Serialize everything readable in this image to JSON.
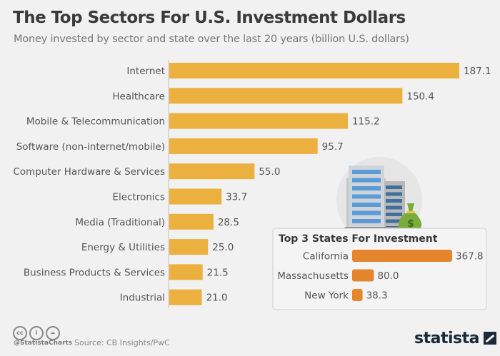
{
  "header": {
    "title": "The Top Sectors For U.S. Investment Dollars",
    "subtitle": "Money invested by sector and state over the last 20 years (billion U.S. dollars)"
  },
  "footer": {
    "handle": "@StatistaCharts",
    "source": "Source: CB Insights/PwC",
    "logo": "statista",
    "license_icons": [
      "cc-icon",
      "by-icon",
      "nd-icon"
    ]
  },
  "colors": {
    "sector_bar": "#ebb03d",
    "state_bar": "#e5862f",
    "background": "#f1f1f1"
  },
  "chart_data": [
    {
      "type": "bar",
      "orientation": "horizontal",
      "title": "The Top Sectors For U.S. Investment Dollars",
      "subtitle": "Money invested by sector and state over the last 20 years (billion U.S. dollars)",
      "categories": [
        "Internet",
        "Healthcare",
        "Mobile & Telecommunication",
        "Software (non-internet/mobile)",
        "Computer Hardware & Services",
        "Electronics",
        "Media (Traditional)",
        "Energy & Utilities",
        "Business Products & Services",
        "Industrial"
      ],
      "values": [
        187.1,
        150.4,
        115.2,
        95.7,
        55.0,
        33.7,
        28.5,
        25.0,
        21.5,
        21.0
      ],
      "value_labels": [
        "187.1",
        "150.4",
        "115.2",
        "95.7",
        "55.0",
        "33.7",
        "28.5",
        "25.0",
        "21.5",
        "21.0"
      ],
      "xlabel": "",
      "ylabel": "",
      "xlim": [
        0,
        187.1
      ],
      "grid": false,
      "legend": "none"
    },
    {
      "type": "bar",
      "orientation": "horizontal",
      "title": "Top 3 States For Investment",
      "categories": [
        "California",
        "Massachusetts",
        "New York"
      ],
      "values": [
        367.8,
        80.0,
        38.3
      ],
      "value_labels": [
        "367.8",
        "80.0",
        "38.3"
      ],
      "xlim": [
        0,
        367.8
      ],
      "grid": false,
      "legend": "none"
    }
  ]
}
